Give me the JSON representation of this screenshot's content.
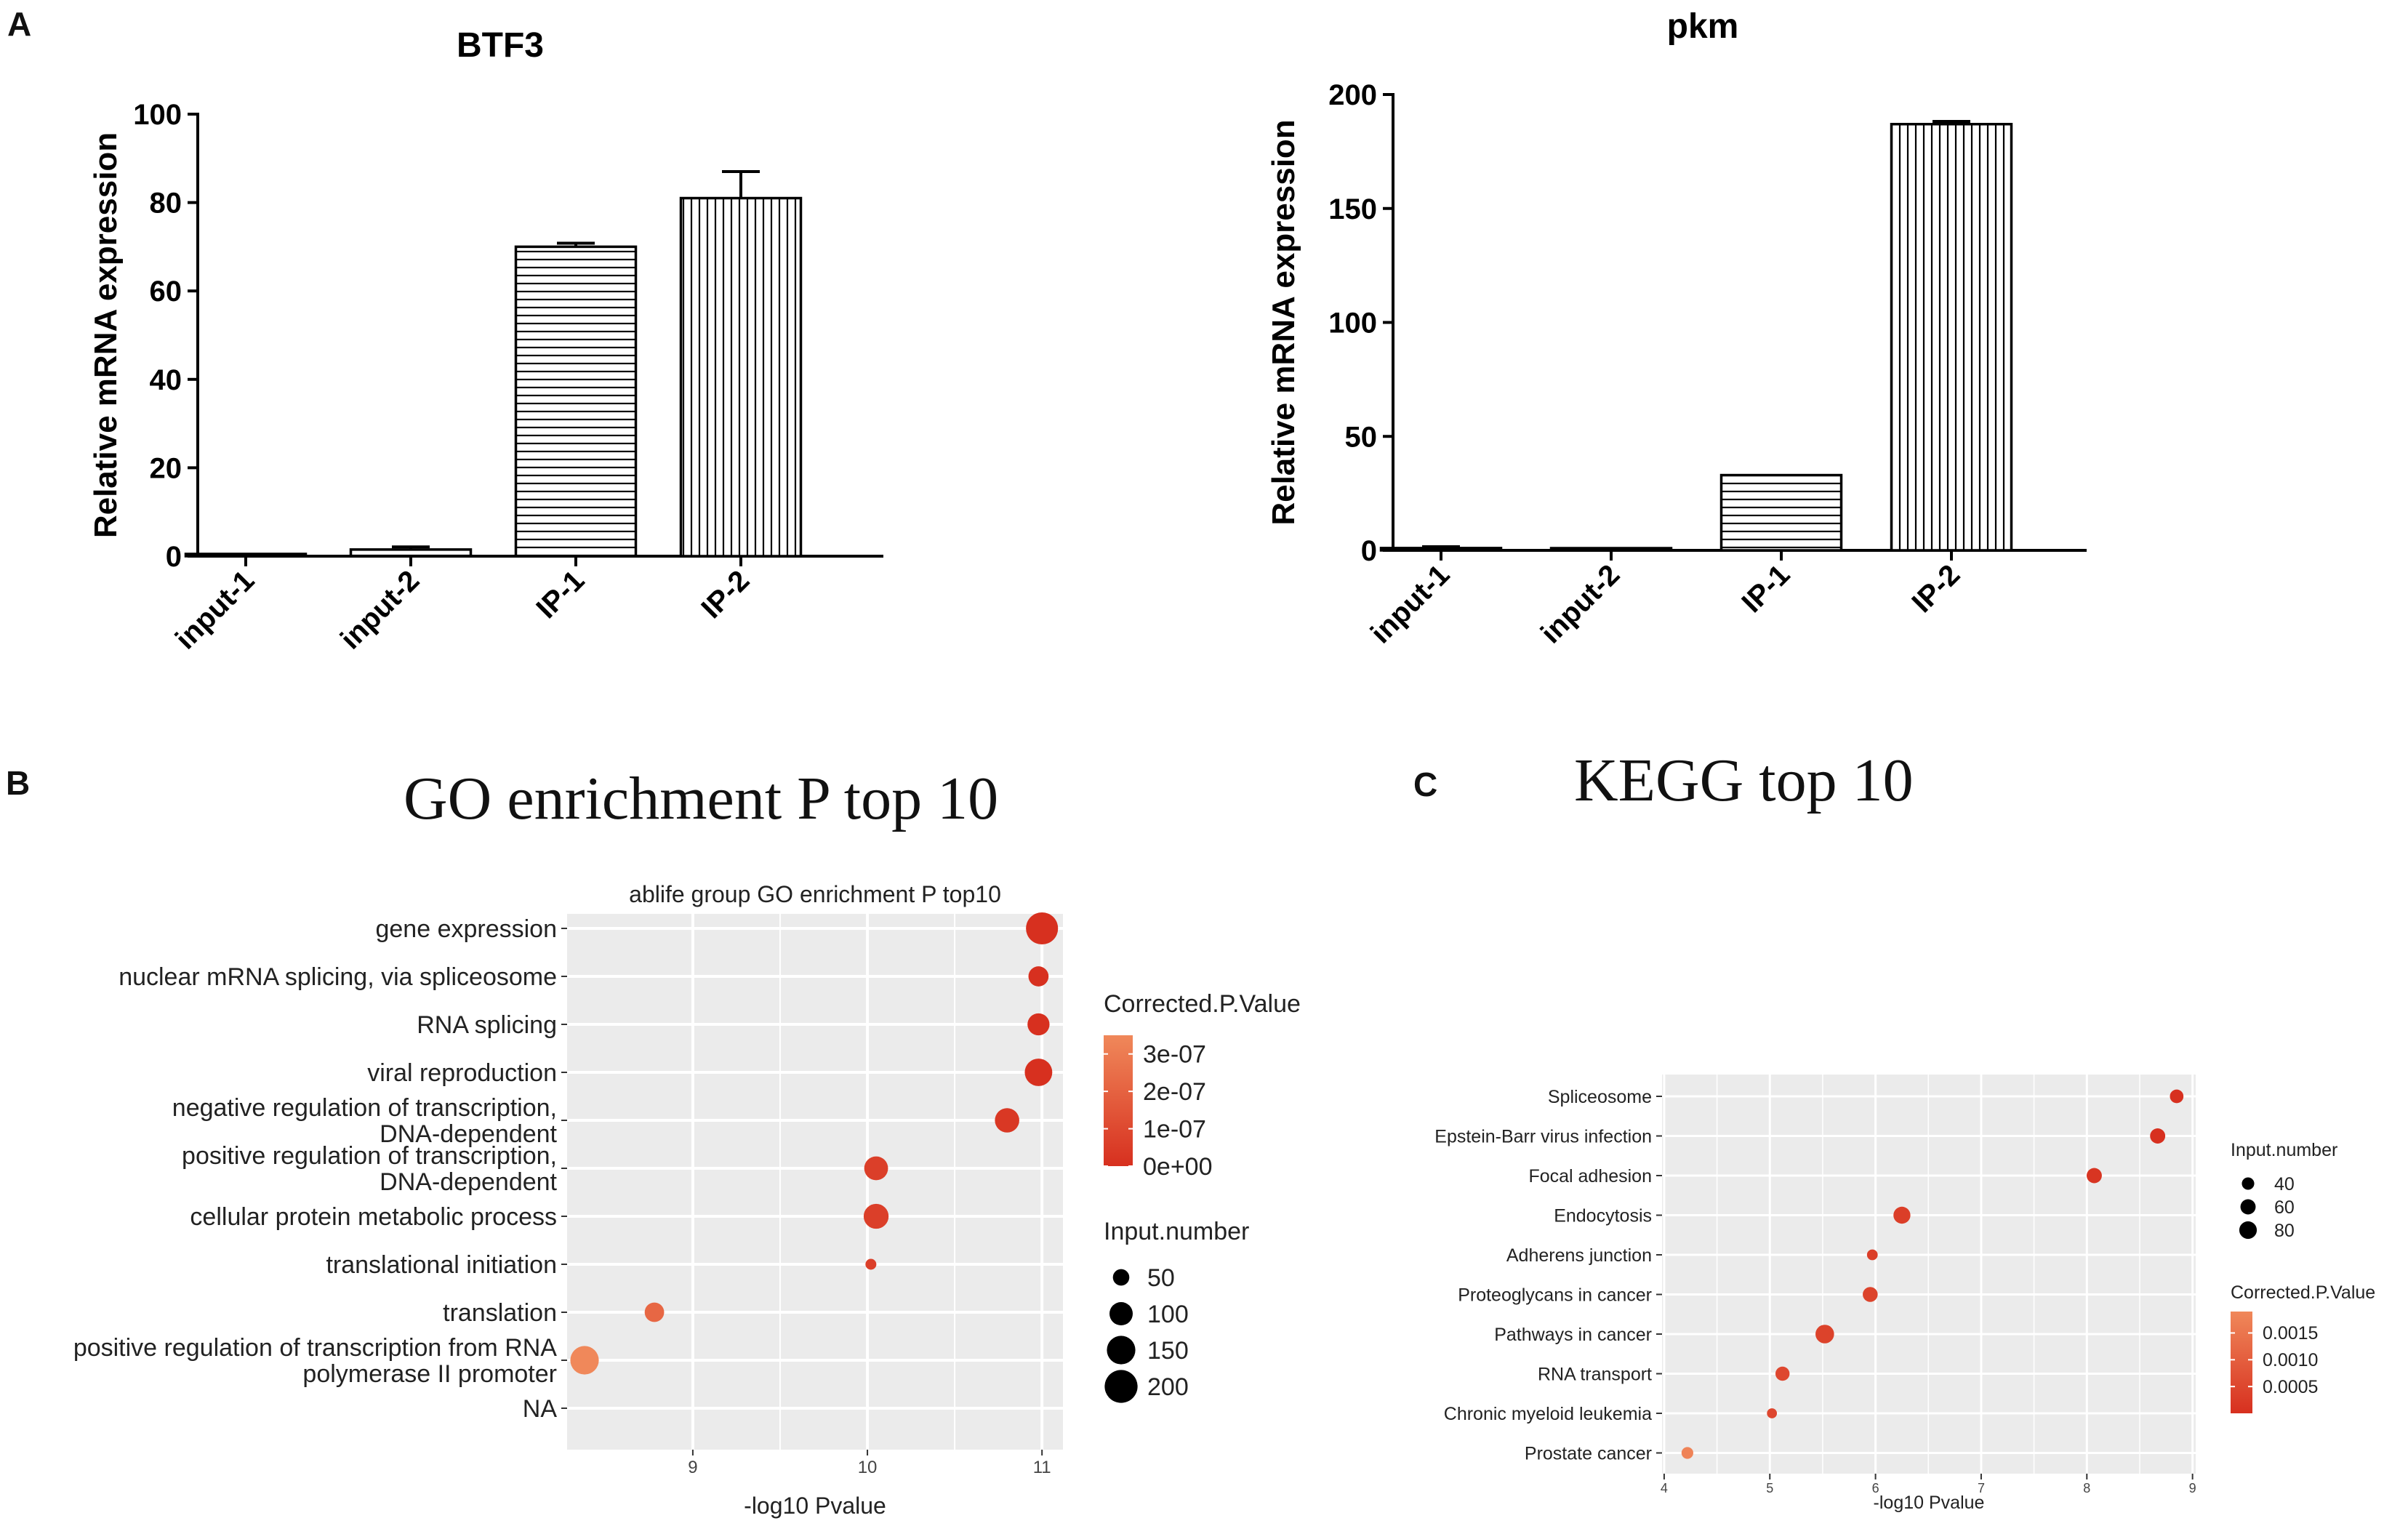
{
  "panels": {
    "a": "A",
    "b": "B",
    "c": "C"
  },
  "colors": {
    "bar_fill": "#ffffff",
    "ink": "#000000",
    "plot_bg": "#ebebeb",
    "grid": "#ffffff",
    "low_p": "#d7301f",
    "high_p": "#f0885a"
  },
  "go_title": "GO enrichment P top 10",
  "kegg_title": "KEGG top 10",
  "chart_data": [
    {
      "id": "btf3",
      "type": "bar",
      "title": "BTF3",
      "ylabel": "Relative  mRNA expression",
      "xlabel": "",
      "categories": [
        "input-1",
        "input-2",
        "IP-1",
        "IP-2"
      ],
      "values": [
        0.5,
        1.5,
        70,
        81
      ],
      "errors": [
        0.3,
        0.6,
        0.8,
        6
      ],
      "patterns": [
        "horizontal",
        "horizontal",
        "horizontal",
        "vertical"
      ],
      "ylim": [
        0,
        100
      ],
      "yticks": [
        0,
        20,
        40,
        60,
        80,
        100
      ]
    },
    {
      "id": "pkm",
      "type": "bar",
      "title": "pkm",
      "ylabel": "Relative  mRNA expression",
      "xlabel": "",
      "categories": [
        "input-1",
        "input-2",
        "IP-1",
        "IP-2"
      ],
      "values": [
        1,
        0.5,
        33,
        187
      ],
      "errors": [
        0.6,
        0.3,
        0.5,
        1.2
      ],
      "patterns": [
        "horizontal",
        "horizontal",
        "horizontal",
        "vertical"
      ],
      "ylim": [
        0,
        200
      ],
      "yticks": [
        0,
        50,
        100,
        150,
        200
      ]
    },
    {
      "id": "go",
      "type": "scatter",
      "title": "ablife group GO enrichment P top10",
      "xlabel": "-log10 Pvalue",
      "ylabel": "",
      "xlim": [
        8.28,
        11.12
      ],
      "xticks": [
        9,
        10,
        11
      ],
      "categories": [
        "gene expression",
        "nuclear mRNA splicing, via spliceosome",
        "RNA splicing",
        "viral reproduction",
        "negative regulation of transcription,\nDNA-dependent",
        "positive regulation of transcription,\nDNA-dependent",
        "cellular protein metabolic process",
        "translational initiation",
        "translation",
        "positive regulation of transcription from RNA\npolymerase II promoter",
        "NA"
      ],
      "points": [
        {
          "x": 11.0,
          "size": 190,
          "p": 0.0
        },
        {
          "x": 10.98,
          "size": 75,
          "p": 0.0
        },
        {
          "x": 10.98,
          "size": 90,
          "p": 0.0
        },
        {
          "x": 10.98,
          "size": 140,
          "p": 0.0
        },
        {
          "x": 10.8,
          "size": 110,
          "p": 3e-08
        },
        {
          "x": 10.05,
          "size": 105,
          "p": 6e-08
        },
        {
          "x": 10.05,
          "size": 115,
          "p": 6e-08
        },
        {
          "x": 10.02,
          "size": 22,
          "p": 6e-08
        },
        {
          "x": 8.78,
          "size": 70,
          "p": 2.2e-07
        },
        {
          "x": 8.38,
          "size": 150,
          "p": 3.5e-07
        },
        null
      ],
      "color_legend": {
        "title": "Corrected.P.Value",
        "labels": [
          "3e-07",
          "2e-07",
          "1e-07",
          "0e+00"
        ],
        "range": [
          0,
          3.5e-07
        ]
      },
      "size_legend": {
        "title": "Input.number",
        "values": [
          50,
          100,
          150,
          200
        ]
      }
    },
    {
      "id": "kegg",
      "type": "scatter",
      "title": "",
      "xlabel": "-log10 Pvalue",
      "ylabel": "",
      "xlim": [
        3.98,
        9.03
      ],
      "xticks": [
        4,
        5,
        6,
        7,
        8,
        9
      ],
      "categories": [
        "Spliceosome",
        "Epstein-Barr virus infection",
        "Focal adhesion",
        "Endocytosis",
        "Adherens junction",
        "Proteoglycans in cancer",
        "Pathways in cancer",
        "RNA transport",
        "Chronic myeloid leukemia",
        "Prostate cancer"
      ],
      "points": [
        {
          "x": 8.85,
          "size": 48,
          "p": 0.0
        },
        {
          "x": 8.67,
          "size": 60,
          "p": 0.0
        },
        {
          "x": 8.07,
          "size": 60,
          "p": 0.0001
        },
        {
          "x": 6.25,
          "size": 75,
          "p": 0.0003
        },
        {
          "x": 5.97,
          "size": 30,
          "p": 0.0003
        },
        {
          "x": 5.95,
          "size": 58,
          "p": 0.0004
        },
        {
          "x": 5.52,
          "size": 90,
          "p": 0.0004
        },
        {
          "x": 5.12,
          "size": 52,
          "p": 0.0005
        },
        {
          "x": 5.02,
          "size": 26,
          "p": 0.0005
        },
        {
          "x": 4.22,
          "size": 36,
          "p": 0.0018
        }
      ],
      "color_legend": {
        "title": "Corrected.P.Value",
        "labels": [
          "0.0015",
          "0.0010",
          "0.0005"
        ],
        "range": [
          0,
          0.0019
        ]
      },
      "size_legend": {
        "title": "Input.number",
        "values": [
          40,
          60,
          80
        ]
      }
    }
  ]
}
